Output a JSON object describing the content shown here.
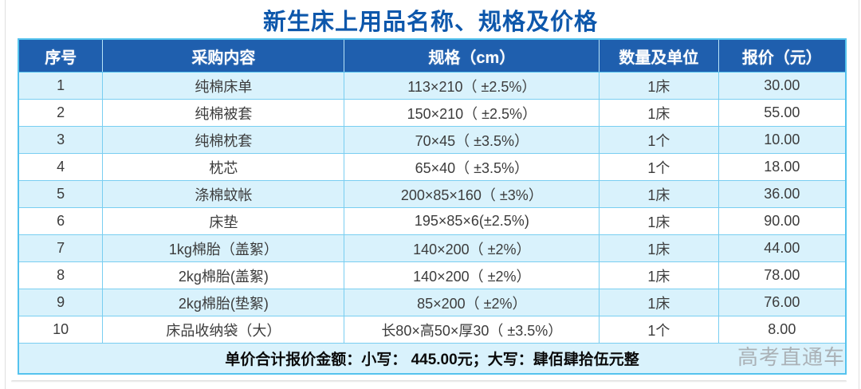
{
  "page": {
    "title": "新生床上用品名称、规格及价格",
    "watermark": "高考直通车"
  },
  "colors": {
    "header_bg": "#1f5fae",
    "alt_row_bg": "#d9f2fc",
    "cell_border": "#79cef1",
    "outer_border": "#55c3ee",
    "title_text": "#0d57ab",
    "watermark_text": "#a6abaf"
  },
  "table": {
    "headers": [
      "序号",
      "采购内容",
      "规格（cm）",
      "数量及单位",
      "报价（元）"
    ],
    "rows": [
      {
        "no": "1",
        "item": "纯棉床单",
        "spec": "113×210（ ±2.5%）",
        "qty": "1床",
        "price": "30.00"
      },
      {
        "no": "2",
        "item": "纯棉被套",
        "spec": "150×210（ ±2.5%）",
        "qty": "1床",
        "price": "55.00"
      },
      {
        "no": "3",
        "item": "纯棉枕套",
        "spec": "70×45（ ±3.5%）",
        "qty": "1个",
        "price": "10.00"
      },
      {
        "no": "4",
        "item": "枕芯",
        "spec": "65×40（ ±3.5%）",
        "qty": "1个",
        "price": "18.00"
      },
      {
        "no": "5",
        "item": "涤棉蚊帐",
        "spec": "200×85×160（ ±3%）",
        "qty": "1床",
        "price": "36.00"
      },
      {
        "no": "6",
        "item": "床垫",
        "spec": "195×85×6(±2.5%)",
        "qty": "1床",
        "price": "90.00"
      },
      {
        "no": "7",
        "item": "1kg棉胎（盖絮）",
        "spec": "140×200（ ±2%）",
        "qty": "1床",
        "price": "44.00"
      },
      {
        "no": "8",
        "item": "2kg棉胎(盖絮)",
        "spec": "140×200（ ±2%）",
        "qty": "1床",
        "price": "78.00"
      },
      {
        "no": "9",
        "item": "2kg棉胎(垫絮)",
        "spec": "85×200（ ±2%）",
        "qty": "1床",
        "price": "76.00"
      },
      {
        "no": "10",
        "item": "床品收纳袋（大）",
        "spec": "长80×高50×厚30（ ±3.5%）",
        "qty": "1个",
        "price": "8.00"
      }
    ],
    "footer": "单价合计报价金额：小写： 445.00元；大写：肆佰肆拾伍元整",
    "total_lowercase": "445.00",
    "total_uppercase": "肆佰肆拾伍元整"
  }
}
